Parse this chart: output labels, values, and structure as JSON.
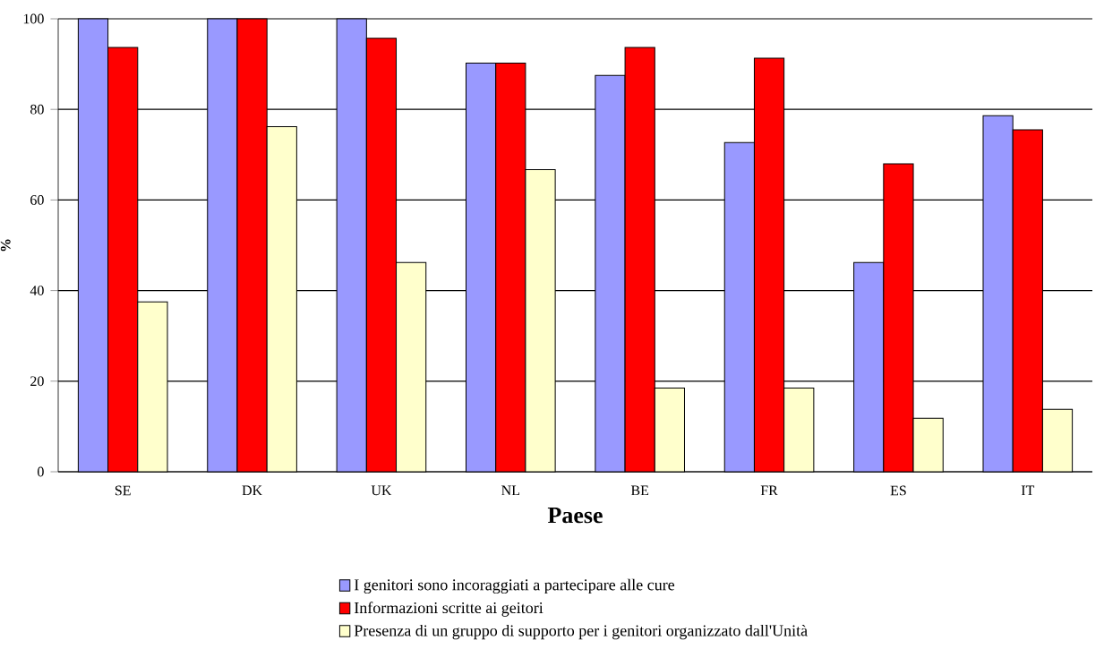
{
  "chart_data": {
    "type": "bar",
    "xlabel": "Paese",
    "ylabel": "%",
    "categories": [
      "SE",
      "DK",
      "UK",
      "NL",
      "BE",
      "FR",
      "ES",
      "IT"
    ],
    "series": [
      {
        "name": "I genitori sono incoraggiati a partecipare alle cure",
        "color": "#9999ff",
        "values": [
          100,
          100,
          100,
          90.2,
          87.5,
          72.7,
          46.2,
          78.6
        ]
      },
      {
        "name": "Informazioni scritte ai geitori",
        "color": "#ff0000",
        "values": [
          93.7,
          100,
          95.7,
          90.2,
          93.7,
          91.3,
          68.0,
          75.5
        ]
      },
      {
        "name": "Presenza di un gruppo di supporto per i genitori organizzato dall'Unità",
        "color": "#ffffcc",
        "values": [
          37.5,
          76.2,
          46.2,
          66.7,
          18.5,
          18.5,
          11.8,
          13.8
        ]
      }
    ],
    "ylim": [
      0,
      100
    ],
    "yticks": [
      0,
      20,
      40,
      60,
      80,
      100
    ],
    "grid": "y",
    "legend": "bottom"
  }
}
